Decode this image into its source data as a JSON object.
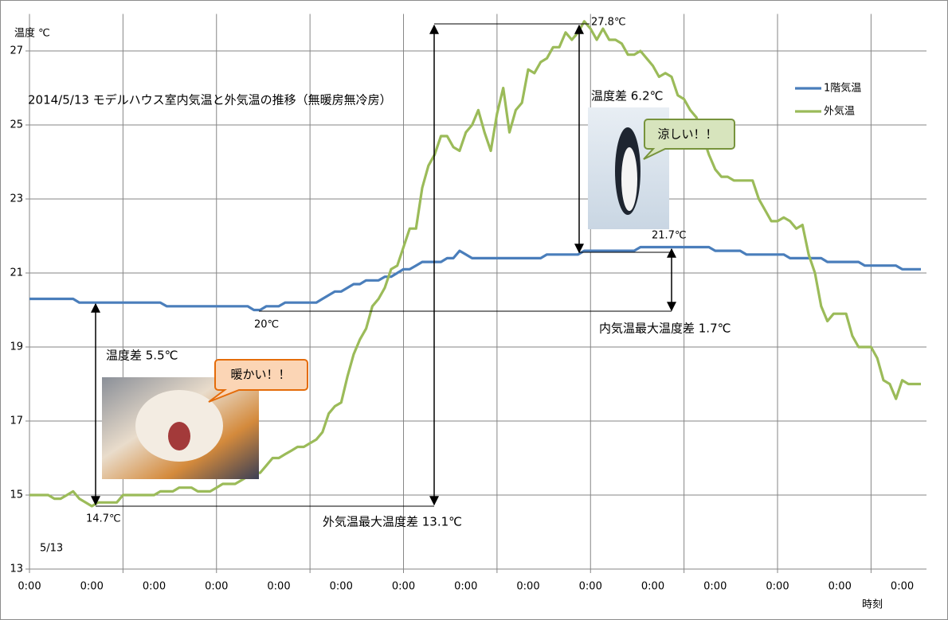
{
  "chart_data": {
    "type": "line",
    "y_axis_title": "温度 ℃",
    "x_axis_title": "時刻",
    "categories": [
      "0:00",
      null,
      null,
      null,
      null,
      null,
      null,
      null,
      null,
      null,
      "0:00",
      null,
      null,
      null,
      null,
      null,
      null,
      null,
      null,
      null,
      "0:00",
      null,
      null,
      null,
      null,
      null,
      null,
      null,
      null,
      null,
      "0:00",
      null,
      null,
      null,
      null,
      null,
      null,
      null,
      null,
      null,
      "0:00",
      null,
      null,
      null,
      null,
      null,
      null,
      null,
      null,
      null,
      "0:00",
      null,
      null,
      null,
      null,
      null,
      null,
      null,
      null,
      null,
      "0:00",
      null,
      null,
      null,
      null,
      null,
      null,
      null,
      null,
      null,
      "0:00",
      null,
      null,
      null,
      null,
      null,
      null,
      null,
      null,
      null,
      "0:00",
      null,
      null,
      null,
      null,
      null,
      null,
      null,
      null,
      null,
      "0:00",
      null,
      null,
      null,
      null,
      null,
      null,
      null,
      null,
      null,
      "0:00",
      null,
      null,
      null,
      null,
      null,
      null,
      null,
      null,
      null,
      "0:00",
      null,
      null,
      null,
      null,
      null,
      null,
      null,
      null,
      null,
      "0:00",
      null,
      null,
      null,
      null,
      null,
      null,
      null,
      null,
      null,
      "0:00",
      null,
      null,
      null,
      null,
      null,
      null,
      null,
      null,
      null,
      "0:00",
      null,
      null,
      null
    ],
    "series": [
      {
        "name": "1階気温",
        "color": "#4a7ebb",
        "values": [
          20.3,
          20.3,
          20.3,
          20.3,
          20.3,
          20.3,
          20.3,
          20.3,
          20.2,
          20.2,
          20.2,
          20.2,
          20.2,
          20.2,
          20.2,
          20.2,
          20.2,
          20.2,
          20.2,
          20.2,
          20.2,
          20.2,
          20.1,
          20.1,
          20.1,
          20.1,
          20.1,
          20.1,
          20.1,
          20.1,
          20.1,
          20.1,
          20.1,
          20.1,
          20.1,
          20.1,
          20.0,
          20.0,
          20.1,
          20.1,
          20.1,
          20.2,
          20.2,
          20.2,
          20.2,
          20.2,
          20.2,
          20.3,
          20.4,
          20.5,
          20.5,
          20.6,
          20.7,
          20.7,
          20.8,
          20.8,
          20.8,
          20.9,
          20.9,
          21.0,
          21.1,
          21.1,
          21.2,
          21.3,
          21.3,
          21.3,
          21.3,
          21.4,
          21.4,
          21.6,
          21.5,
          21.4,
          21.4,
          21.4,
          21.4,
          21.4,
          21.4,
          21.4,
          21.4,
          21.4,
          21.4,
          21.4,
          21.4,
          21.5,
          21.5,
          21.5,
          21.5,
          21.5,
          21.5,
          21.6,
          21.6,
          21.6,
          21.6,
          21.6,
          21.6,
          21.6,
          21.6,
          21.6,
          21.7,
          21.7,
          21.7,
          21.7,
          21.7,
          21.7,
          21.7,
          21.7,
          21.7,
          21.7,
          21.7,
          21.7,
          21.6,
          21.6,
          21.6,
          21.6,
          21.6,
          21.5,
          21.5,
          21.5,
          21.5,
          21.5,
          21.5,
          21.5,
          21.4,
          21.4,
          21.4,
          21.4,
          21.4,
          21.4,
          21.3,
          21.3,
          21.3,
          21.3,
          21.3,
          21.3,
          21.2,
          21.2,
          21.2,
          21.2,
          21.2,
          21.2,
          21.1,
          21.1,
          21.1,
          21.1
        ]
      },
      {
        "name": "外気温",
        "color": "#9bbb59",
        "values": [
          15.0,
          15.0,
          15.0,
          15.0,
          14.9,
          14.9,
          15.0,
          15.1,
          14.9,
          14.8,
          14.7,
          14.8,
          14.8,
          14.8,
          14.8,
          15.0,
          15.0,
          15.0,
          15.0,
          15.0,
          15.0,
          15.1,
          15.1,
          15.1,
          15.2,
          15.2,
          15.2,
          15.1,
          15.1,
          15.1,
          15.2,
          15.3,
          15.3,
          15.3,
          15.4,
          15.5,
          15.6,
          15.6,
          15.8,
          16.0,
          16.0,
          16.1,
          16.2,
          16.3,
          16.3,
          16.4,
          16.5,
          16.7,
          17.2,
          17.4,
          17.5,
          18.2,
          18.8,
          19.2,
          19.5,
          20.1,
          20.3,
          20.6,
          21.1,
          21.2,
          21.7,
          22.2,
          22.2,
          23.3,
          23.9,
          24.2,
          24.7,
          24.7,
          24.4,
          24.3,
          24.8,
          25.0,
          25.4,
          24.8,
          24.3,
          25.3,
          26.0,
          24.8,
          25.4,
          25.6,
          26.5,
          26.4,
          26.7,
          26.8,
          27.1,
          27.1,
          27.5,
          27.3,
          27.5,
          27.8,
          27.6,
          27.3,
          27.6,
          27.3,
          27.3,
          27.2,
          26.9,
          26.9,
          27.0,
          26.8,
          26.6,
          26.3,
          26.4,
          26.3,
          25.8,
          25.7,
          25.4,
          25.2,
          24.7,
          24.2,
          23.8,
          23.6,
          23.6,
          23.5,
          23.5,
          23.5,
          23.5,
          23.0,
          22.7,
          22.4,
          22.4,
          22.5,
          22.4,
          22.2,
          22.3,
          21.5,
          21.0,
          20.1,
          19.7,
          19.9,
          19.9,
          19.9,
          19.3,
          19.0,
          19.0,
          19.0,
          18.7,
          18.1,
          18.0,
          17.6,
          18.1,
          18.0,
          18.0,
          18.0
        ]
      }
    ],
    "ylim": [
      13,
      28
    ],
    "yticks": [
      13,
      15,
      17,
      19,
      21,
      23,
      25,
      27
    ],
    "grid": true,
    "legend": "right",
    "annotations": [
      "2014/5/13 モデルハウス室内気温と外気温の推移（無暖房無冷房）",
      "温度差 5.5℃",
      "温度差 6.2℃",
      "暖かい！！",
      "涼しい！！",
      "14.7℃",
      "20℃",
      "21.7℃",
      "27.8℃",
      "内気温最大温度差 1.7℃",
      "外気温最大温度差 13.1℃",
      "5/13"
    ]
  }
}
